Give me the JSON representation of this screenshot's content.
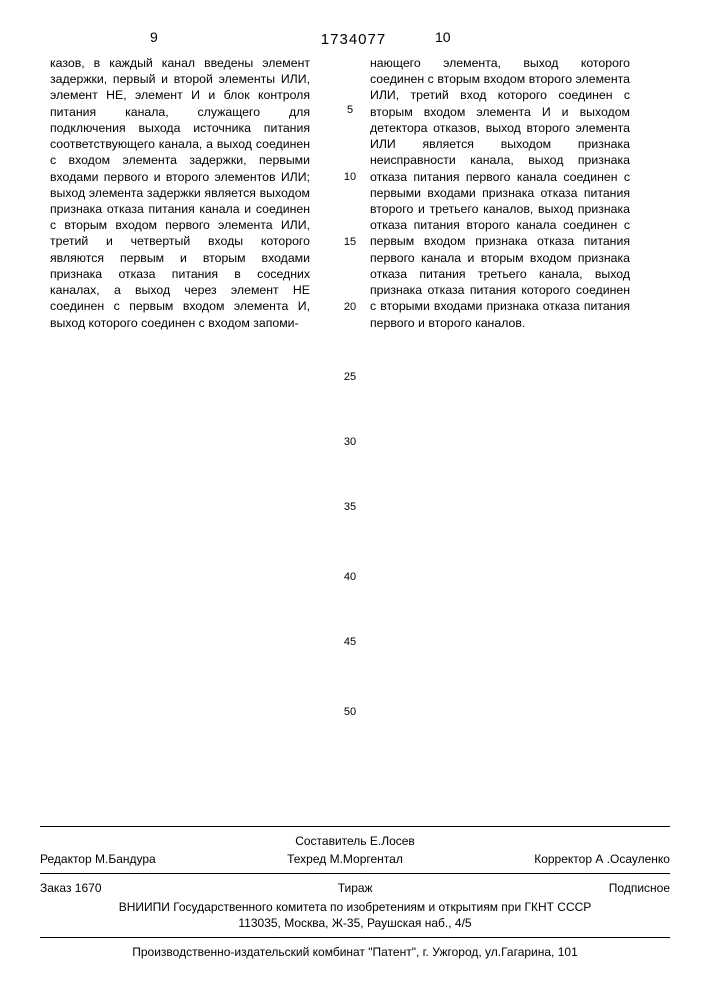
{
  "header": {
    "leftPageNum": "9",
    "rightPageNum": "10",
    "docNumber": "1734077"
  },
  "leftColumn": "казов, в каждый канал введены элемент задержки, первый и второй элементы ИЛИ, элемент НЕ, элемент И и блок контроля питания канала, служащего для подключения выхода источника питания соответствующего канала, а выход соединен с входом элемента задержки, первыми входами первого и второго элементов ИЛИ; выход элемента задержки является выходом признака отказа питания канала и соединен с вторым входом первого элемента ИЛИ, третий и четвертый входы которого являются первым и вторым входами признака отказа питания в соседних каналах, а выход через элемент НЕ соединен с первым входом элемента И, выход которого соединен с входом запоми-",
  "rightColumn": "нающего элемента, выход которого соединен с вторым входом второго элемента ИЛИ, третий вход которого соединен с вторым входом элемента И и выходом детектора отказов, выход второго элемента ИЛИ является выходом признака неисправности канала, выход признака отказа питания первого канала соединен с первыми входами признака отказа питания второго и третьего каналов, выход признака отказа питания второго канала соединен с первым входом признака отказа питания первого канала и вторым входом признака отказа питания третьего канала, выход признака отказа питания которого соединен с вторыми входами признака отказа питания первого и второго каналов.",
  "lineMarks": [
    "5",
    "10",
    "15",
    "20",
    "25",
    "30",
    "35",
    "40",
    "45",
    "50"
  ],
  "lineMarkTops": [
    103,
    170,
    235,
    300,
    370,
    435,
    500,
    570,
    635,
    705
  ],
  "credits": {
    "compiler": "Составитель  Е.Лосев",
    "editor": "Редактор М.Бандура",
    "techred": "Техред М.Моргентал",
    "corrector": "Корректор  А .Осауленко",
    "order": "Заказ  1670",
    "tirazh": "Тираж",
    "subscr": "Подписное",
    "org": "ВНИИПИ Государственного комитета по изобретениям и открытиям при ГКНТ СССР",
    "addr": "113035, Москва, Ж-35, Раушская наб., 4/5",
    "press": "Производственно-издательский комбинат \"Патент\", г. Ужгород, ул.Гагарина, 101"
  }
}
